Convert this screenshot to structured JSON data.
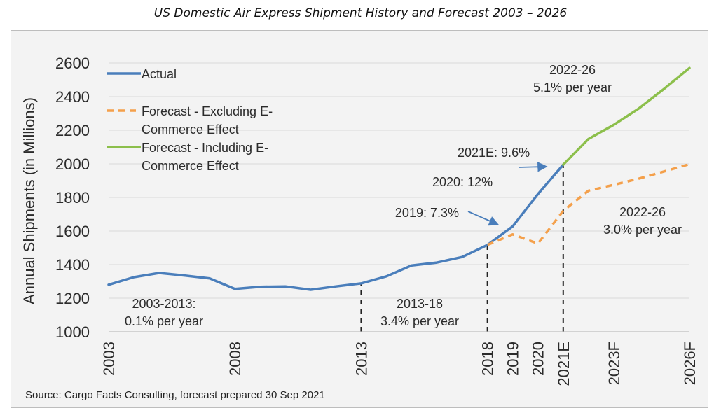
{
  "title": "US Domestic Air Express Shipment History and Forecast 2003 – 2026",
  "source": "Source: Cargo Facts Consulting, forecast prepared 30 Sep 2021",
  "chart_data": {
    "type": "line",
    "title": "US Domestic Air Express Shipment History and Forecast 2003 – 2026",
    "ylabel": "Annual Shipments  (in Millions)",
    "xlabel": "",
    "ylim": [
      1000,
      2600
    ],
    "xlim": [
      2003,
      2026
    ],
    "yticks": [
      1000,
      1200,
      1400,
      1600,
      1800,
      2000,
      2200,
      2400,
      2600
    ],
    "xticks": [
      {
        "x": 2003,
        "label": "2003"
      },
      {
        "x": 2008,
        "label": "2008"
      },
      {
        "x": 2013,
        "label": "2013"
      },
      {
        "x": 2018,
        "label": "2018"
      },
      {
        "x": 2019,
        "label": "2019"
      },
      {
        "x": 2020,
        "label": "2020"
      },
      {
        "x": 2021,
        "label": "2021E"
      },
      {
        "x": 2023,
        "label": "2023F"
      },
      {
        "x": 2026,
        "label": "2026F"
      }
    ],
    "grid": "horizontal",
    "legend_position": "top-left",
    "series": [
      {
        "name": "Actual",
        "color": "#4a7ebb",
        "style": "solid",
        "x": [
          2003,
          2004,
          2005,
          2006,
          2007,
          2008,
          2009,
          2010,
          2011,
          2012,
          2013,
          2014,
          2015,
          2016,
          2017,
          2018,
          2019,
          2020,
          2021
        ],
        "values": [
          1280,
          1325,
          1350,
          1335,
          1318,
          1255,
          1268,
          1270,
          1250,
          1270,
          1288,
          1330,
          1395,
          1412,
          1445,
          1517,
          1628,
          1820,
          1995
        ]
      },
      {
        "name": "Forecast - Excluding E-Commerce Effect",
        "legend_lines": [
          "Forecast - Excluding E-",
          "Commerce Effect"
        ],
        "color": "#f4a04b",
        "style": "dashed",
        "x": [
          2018,
          2019,
          2020,
          2021,
          2022,
          2023,
          2024,
          2025,
          2026
        ],
        "values": [
          1517,
          1580,
          1525,
          1720,
          1840,
          1875,
          1912,
          1955,
          1998
        ]
      },
      {
        "name": "Forecast - Including E-Commerce Effect",
        "legend_lines": [
          "Forecast - Including E-",
          "Commerce Effect"
        ],
        "color": "#8cbf4b",
        "style": "solid",
        "x": [
          2021,
          2022,
          2023,
          2024,
          2025,
          2026
        ],
        "values": [
          1995,
          2148,
          2232,
          2330,
          2447,
          2570
        ]
      }
    ],
    "vlines": [
      {
        "x": 2013,
        "from": 1000,
        "to": 1288
      },
      {
        "x": 2018,
        "from": 1000,
        "to": 1517
      },
      {
        "x": 2021,
        "from": 1000,
        "to": 1995
      }
    ],
    "annotations": [
      {
        "id": "ann-2003-2013",
        "lines": [
          "2003-2013:",
          "0.1% per year"
        ]
      },
      {
        "id": "ann-2013-18",
        "lines": [
          "2013-18",
          "3.4% per year"
        ]
      },
      {
        "id": "ann-2019",
        "lines": [
          "2019: 7.3%"
        ]
      },
      {
        "id": "ann-2020",
        "lines": [
          "2020: 12%"
        ]
      },
      {
        "id": "ann-2021",
        "lines": [
          "2021E: 9.6%"
        ]
      },
      {
        "id": "ann-2022-26-high",
        "lines": [
          "2022-26",
          "5.1% per year"
        ]
      },
      {
        "id": "ann-2022-26-low",
        "lines": [
          "2022-26",
          "3.0% per year"
        ]
      }
    ]
  }
}
